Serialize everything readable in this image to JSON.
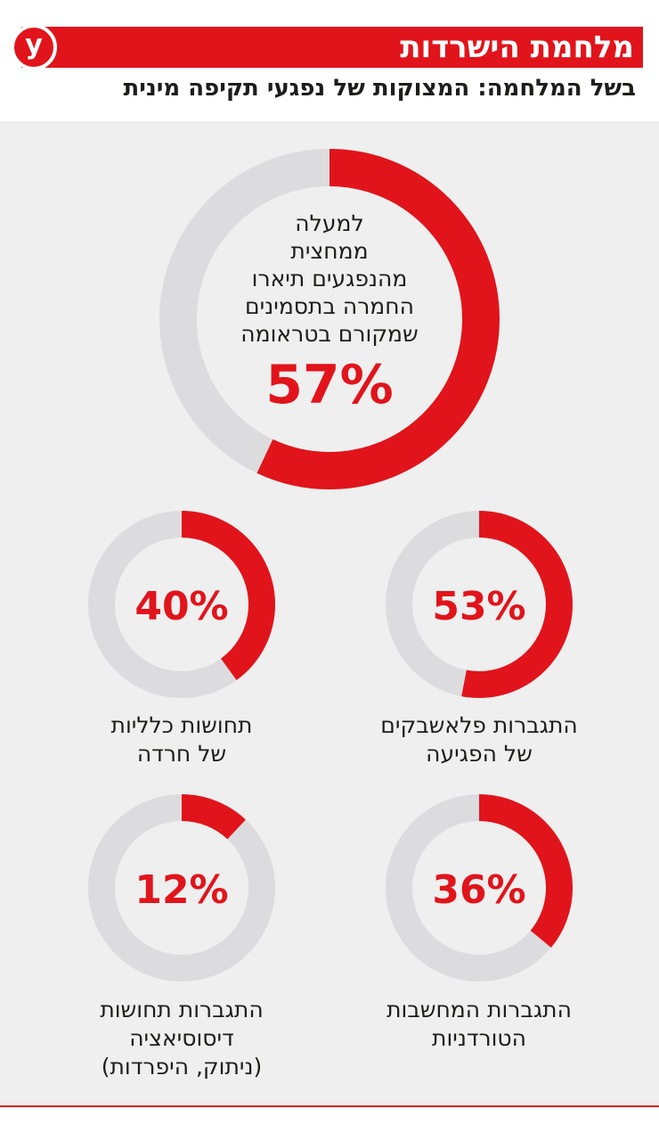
{
  "header": {
    "title": "מלחמת הישרדות",
    "subtitle": "בשל המלחמה: המצוקות של נפגעי תקיפה מינית",
    "logo_letter": "y"
  },
  "colors": {
    "accent": "#e1141b",
    "track": "#dcdcde",
    "panel": "#efefef",
    "text": "#1d1d1b"
  },
  "chart_data": {
    "type": "donut",
    "charts": [
      {
        "id": "main",
        "value": 57,
        "value_label": "57%",
        "label_lines": [
          "למעלה",
          "ממחצית",
          "מהנפגעים תיארו",
          "החמרה בתסמינים",
          "שמקורם בטראומה"
        ]
      },
      {
        "id": "flashbacks",
        "value": 53,
        "value_label": "53%",
        "label_lines": [
          "התגברות פלאשבקים",
          "של הפגיעה"
        ]
      },
      {
        "id": "anxiety",
        "value": 40,
        "value_label": "40%",
        "label_lines": [
          "תחושות כלליות",
          "של חרדה"
        ]
      },
      {
        "id": "thoughts",
        "value": 36,
        "value_label": "36%",
        "label_lines": [
          "התגברות המחשבות",
          "הטורדניות"
        ]
      },
      {
        "id": "dissociation",
        "value": 12,
        "value_label": "12%",
        "label_lines": [
          "התגברות תחושות",
          "דיסוסיאציה",
          "(ניתוק, היפרדות)"
        ]
      }
    ]
  }
}
